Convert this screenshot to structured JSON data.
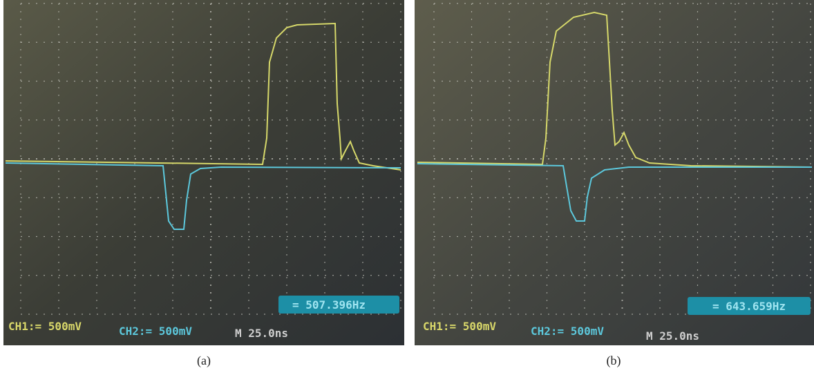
{
  "panels": [
    {
      "caption": "(a)",
      "ch1": "CH1:= 500mV",
      "ch2": "CH2:= 500mV",
      "timebase": "M 25.0ns",
      "frequency": "= 507.396Hz"
    },
    {
      "caption": "(b)",
      "ch1": "CH1:= 500mV",
      "ch2": "CH2:= 500mV",
      "timebase": "M 25.0ns",
      "frequency": "= 643.659Hz"
    }
  ]
}
